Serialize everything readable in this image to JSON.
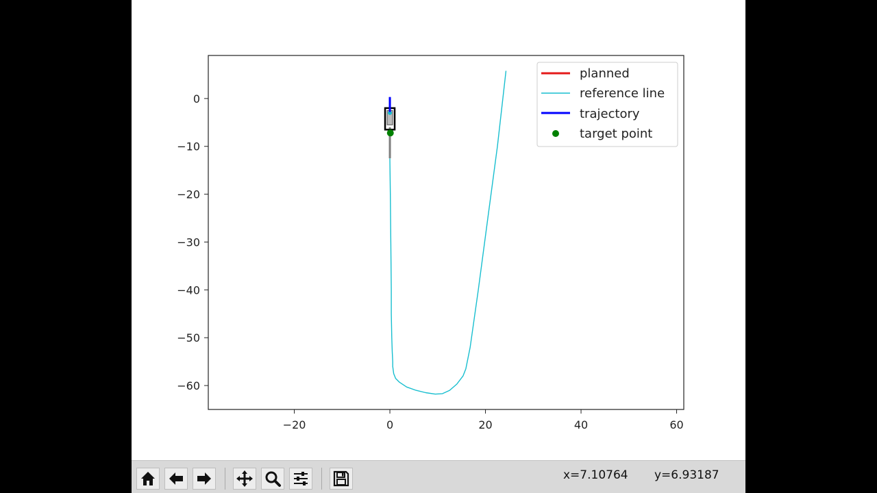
{
  "colors": {
    "planned": "#e41a1a",
    "reference_line": "#17becf",
    "trajectory": "#0000ff",
    "target_point": "#008000",
    "vehicle_box": "#000000",
    "vehicle_wheel": "#7f7f7f"
  },
  "toolbar": {
    "buttons": [
      {
        "name": "home-button",
        "icon": "home-icon"
      },
      {
        "name": "back-button",
        "icon": "arrow-left-icon"
      },
      {
        "name": "forward-button",
        "icon": "arrow-right-icon"
      },
      {
        "name": "pan-button",
        "icon": "move-icon"
      },
      {
        "name": "zoom-button",
        "icon": "magnifier-icon"
      },
      {
        "name": "configure-subplots-button",
        "icon": "sliders-icon"
      },
      {
        "name": "save-button",
        "icon": "floppy-disk-icon"
      }
    ],
    "coord_x": "x=7.10764",
    "coord_y": "y=6.93187"
  },
  "chart_data": {
    "type": "line",
    "title": "",
    "xlabel": "",
    "ylabel": "",
    "xlim": [
      -38,
      61.5
    ],
    "ylim": [
      -65,
      9
    ],
    "x_ticks": [
      -20,
      0,
      20,
      40,
      60
    ],
    "y_ticks": [
      0,
      -10,
      -20,
      -30,
      -40,
      -50,
      -60
    ],
    "x_tick_labels": [
      "−20",
      "0",
      "20",
      "40",
      "60"
    ],
    "y_tick_labels": [
      "0",
      "−10",
      "−20",
      "−30",
      "−40",
      "−50",
      "−60"
    ],
    "grid": false,
    "legend_position": "upper right",
    "series": [
      {
        "name": "planned",
        "kind": "line",
        "color": "#e41a1a",
        "x": [],
        "y": []
      },
      {
        "name": "reference line",
        "kind": "line",
        "color": "#17becf",
        "x": [
          0.0,
          0.1,
          0.2,
          0.3,
          0.3,
          0.4,
          0.5,
          0.6,
          0.6,
          0.8,
          1.2,
          2.0,
          3.5,
          5.5,
          7.5,
          9.5,
          11.0,
          12.5,
          14.0,
          15.3,
          15.9,
          16.8,
          18.5,
          20.5,
          22.5,
          24.3
        ],
        "y": [
          -12.5,
          -20,
          -30,
          -40,
          -45,
          -50,
          -53,
          -55,
          -56,
          -57.5,
          -58.5,
          -59.3,
          -60.3,
          -61,
          -61.5,
          -61.8,
          -61.7,
          -61,
          -59.7,
          -58,
          -56.5,
          -52,
          -40,
          -25,
          -10,
          5.8
        ]
      },
      {
        "name": "trajectory",
        "kind": "line",
        "color": "#0000ff",
        "x": [
          0.0,
          0.0
        ],
        "y": [
          0.3,
          -2.8
        ]
      },
      {
        "name": "target point",
        "kind": "scatter",
        "color": "#008000",
        "x": [
          0.1
        ],
        "y": [
          -7.2
        ]
      }
    ]
  }
}
